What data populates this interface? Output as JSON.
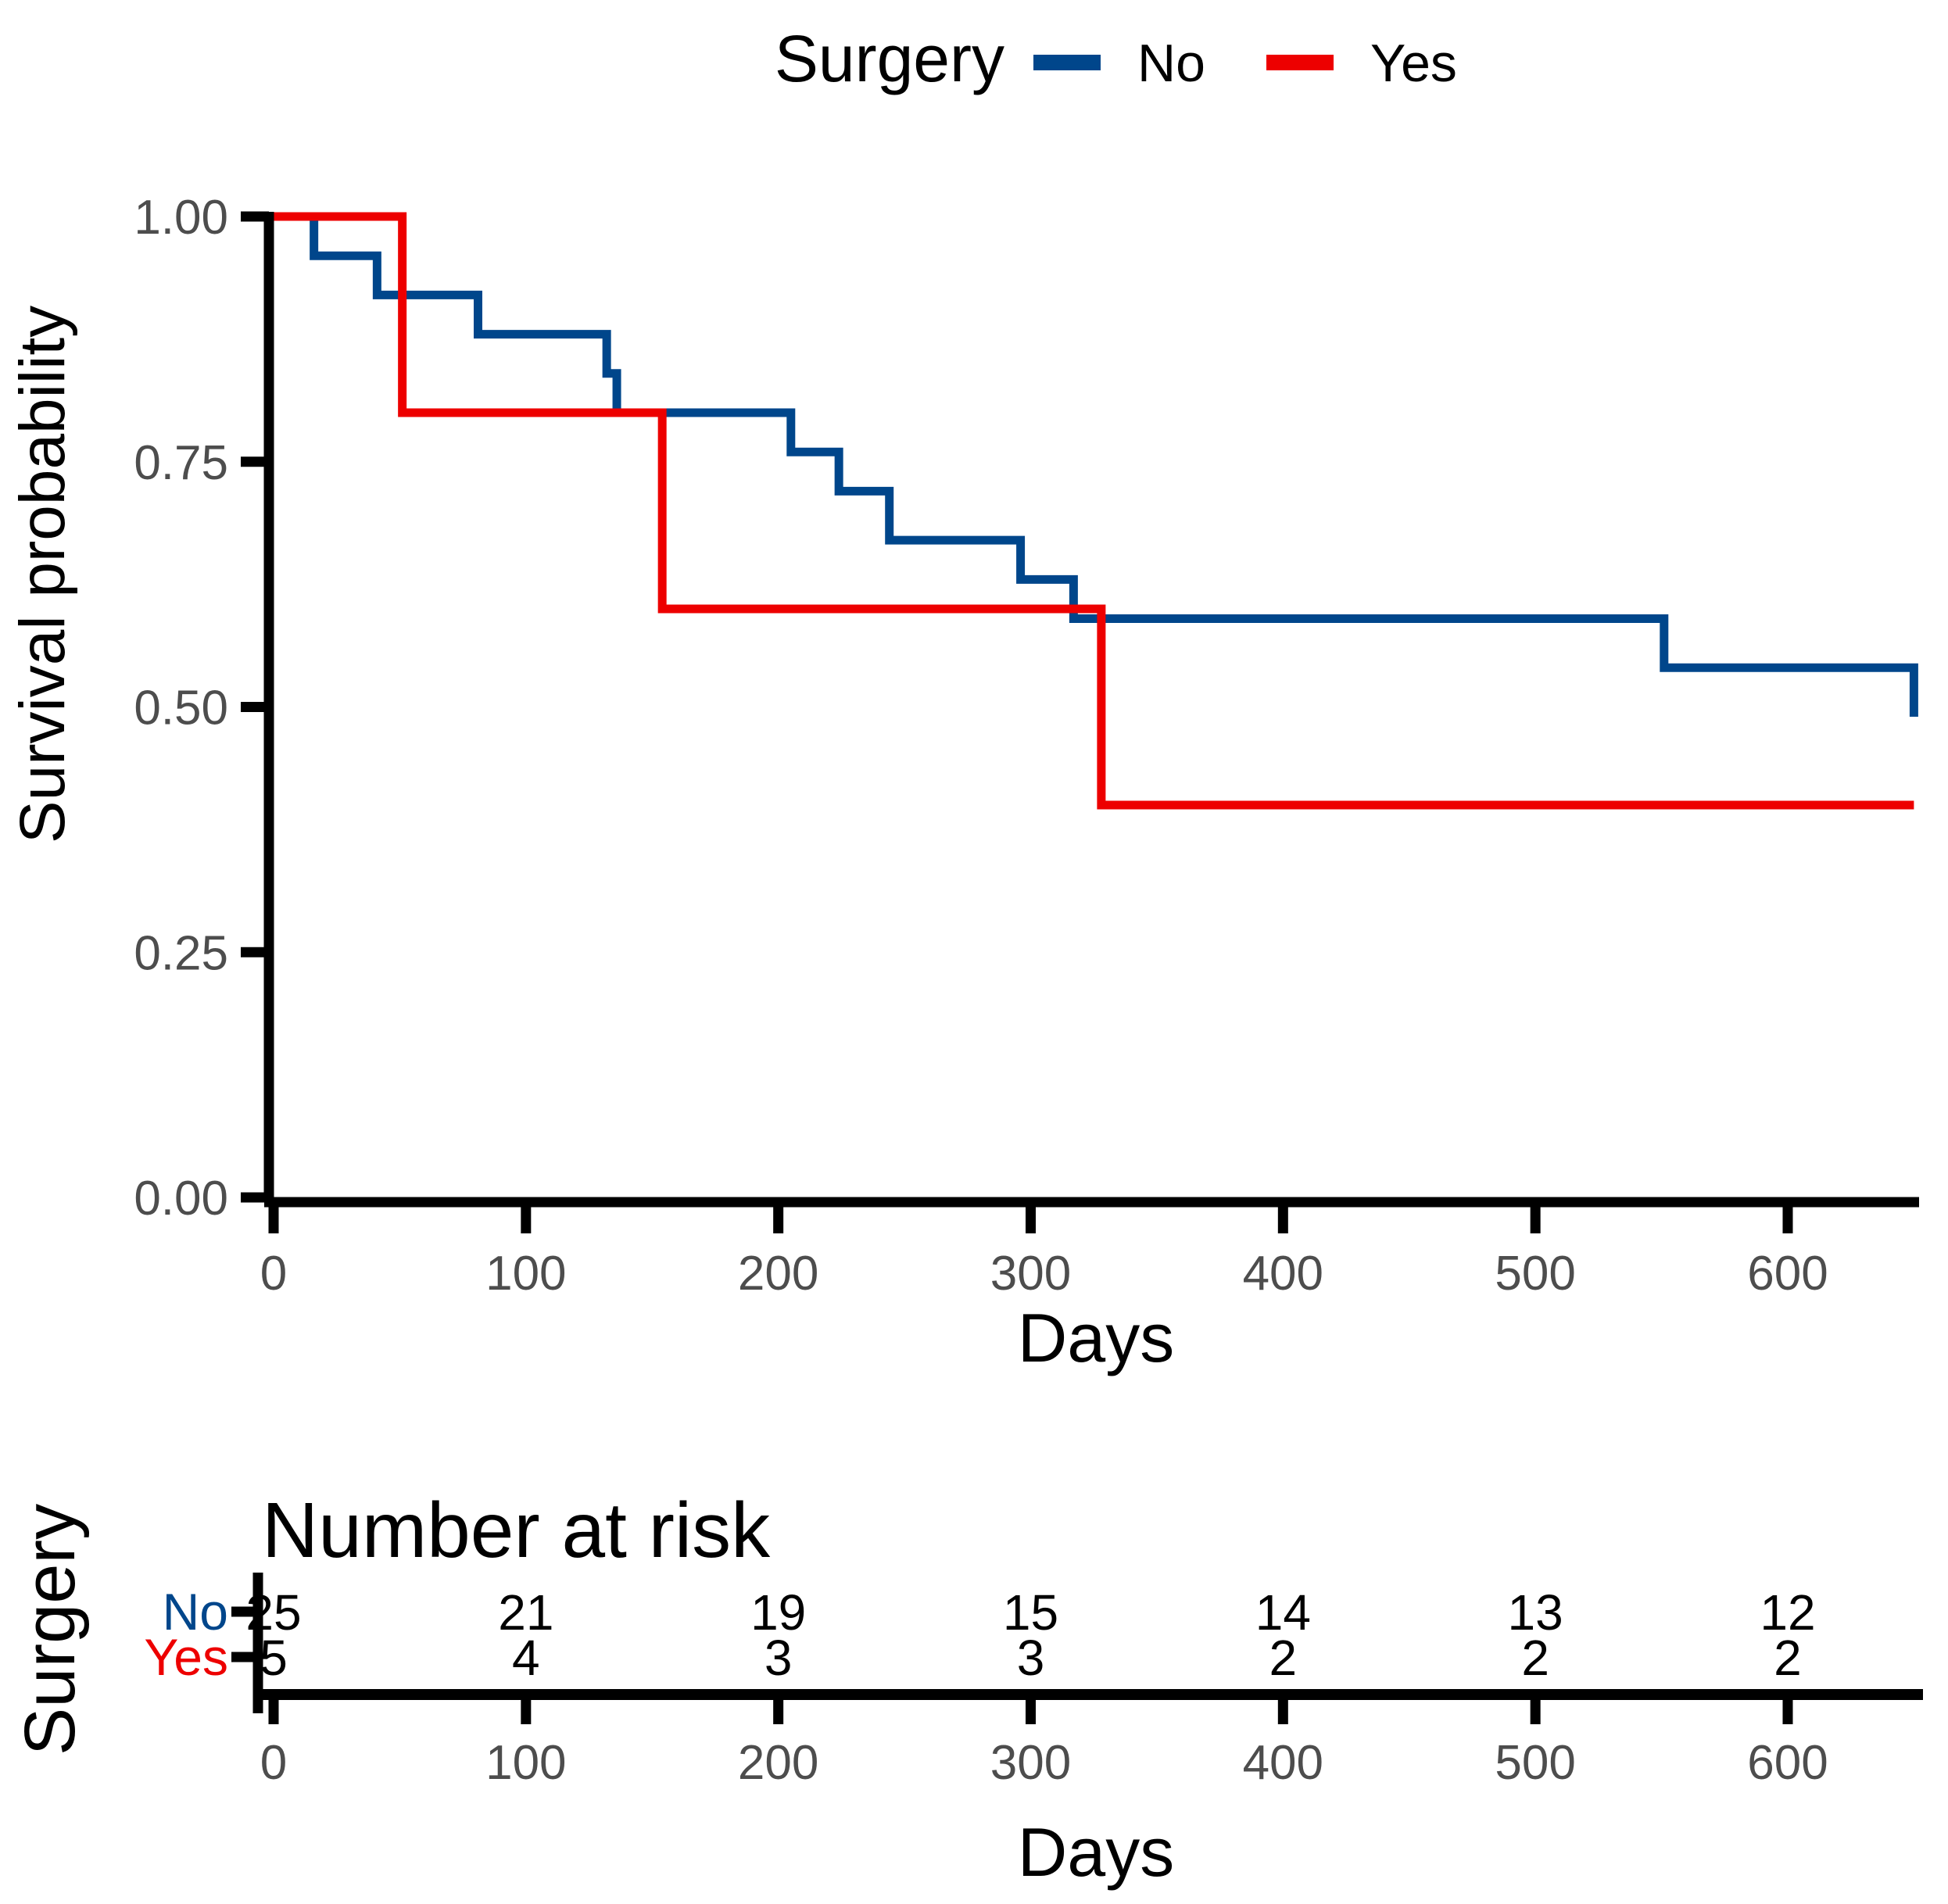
{
  "legend": {
    "title": "Surgery",
    "items": [
      {
        "label": "No",
        "color": "#00468B"
      },
      {
        "label": "Yes",
        "color": "#ED0000"
      }
    ]
  },
  "main_plot": {
    "ylabel": "Survival probability",
    "xlabel": "Days",
    "y_tick_labels": [
      "1.00",
      "0.75",
      "0.50",
      "0.25",
      "0.00"
    ],
    "x_tick_labels": [
      "0",
      "100",
      "200",
      "300",
      "400",
      "500",
      "600"
    ]
  },
  "risk_table": {
    "title": "Number at risk",
    "axis_label": "Surgery",
    "xlabel": "Days",
    "x_tick_labels": [
      "0",
      "100",
      "200",
      "300",
      "400",
      "500",
      "600"
    ],
    "rows": [
      {
        "label": "No",
        "color": "#00468B",
        "counts": [
          "25",
          "21",
          "19",
          "15",
          "14",
          "13",
          "12"
        ]
      },
      {
        "label": "Yes",
        "color": "#ED0000",
        "counts": [
          "5",
          "4",
          "3",
          "3",
          "2",
          "2",
          "2"
        ]
      }
    ]
  },
  "colors": {
    "axis_text": "#4d4d4d",
    "axis_line": "#000000",
    "background": "#ffffff"
  },
  "chart_data": {
    "type": "line",
    "subtype": "kaplan-meier-step",
    "title": "",
    "legend_title": "Surgery",
    "legend_position": "top-center",
    "xlabel": "Days",
    "ylabel": "Survival probability",
    "xlim": [
      0,
      650
    ],
    "ylim": [
      0,
      1
    ],
    "x_ticks": [
      0,
      100,
      200,
      300,
      400,
      500,
      600
    ],
    "y_ticks": [
      0,
      0.25,
      0.5,
      0.75,
      1.0
    ],
    "grid": false,
    "series": [
      {
        "name": "No",
        "color": "#00468B",
        "drop_points": [
          [
            0,
            1.0
          ],
          [
            16,
            0.96
          ],
          [
            41,
            0.92
          ],
          [
            81,
            0.88
          ],
          [
            132,
            0.84
          ],
          [
            136,
            0.8
          ],
          [
            205,
            0.76
          ],
          [
            224,
            0.72
          ],
          [
            244,
            0.67
          ],
          [
            296,
            0.63
          ],
          [
            317,
            0.59
          ],
          [
            551,
            0.54
          ],
          [
            650,
            0.49
          ]
        ]
      },
      {
        "name": "Yes",
        "color": "#ED0000",
        "drop_points": [
          [
            0,
            1.0
          ],
          [
            51,
            0.8
          ],
          [
            154,
            0.6
          ],
          [
            328,
            0.4
          ],
          [
            650,
            0.4
          ]
        ]
      }
    ],
    "number_at_risk": {
      "times": [
        0,
        100,
        200,
        300,
        400,
        500,
        600
      ],
      "series": [
        {
          "name": "No",
          "counts": [
            25,
            21,
            19,
            15,
            14,
            13,
            12
          ]
        },
        {
          "name": "Yes",
          "counts": [
            5,
            4,
            3,
            3,
            2,
            2,
            2
          ]
        }
      ]
    }
  }
}
